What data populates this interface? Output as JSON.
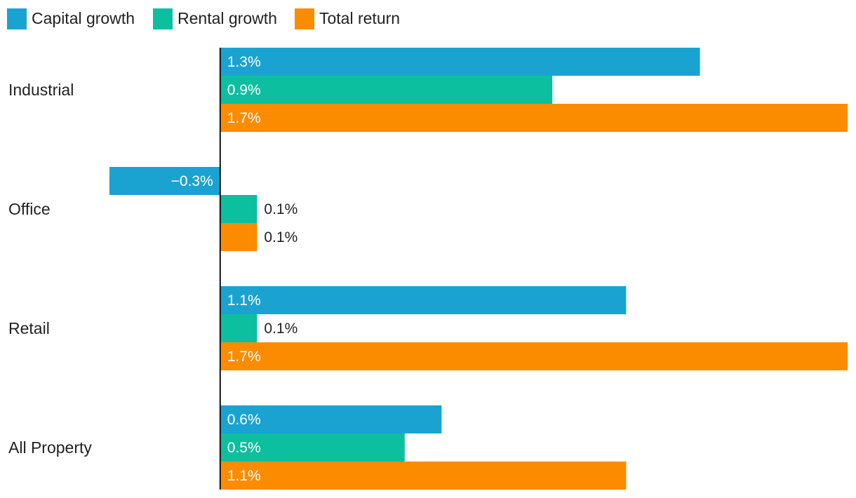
{
  "chart_data": {
    "type": "bar",
    "orientation": "horizontal",
    "categories": [
      "Industrial",
      "Office",
      "Retail",
      "All Property"
    ],
    "series": [
      {
        "name": "Capital growth",
        "color": "#1aa3d1",
        "values": [
          1.3,
          -0.3,
          1.1,
          0.6
        ],
        "labels": [
          "1.3%",
          "−0.3%",
          "1.1%",
          "0.6%"
        ]
      },
      {
        "name": "Rental growth",
        "color": "#0bbf9f",
        "values": [
          0.9,
          0.1,
          0.1,
          0.5
        ],
        "labels": [
          "0.9%",
          "0.1%",
          "0.1%",
          "0.5%"
        ]
      },
      {
        "name": "Total return",
        "color": "#fb8c00",
        "values": [
          1.7,
          0.1,
          1.7,
          1.1
        ],
        "labels": [
          "1.7%",
          "0.1%",
          "1.7%",
          "1.1%"
        ]
      }
    ],
    "xlim": [
      -0.3,
      1.7
    ],
    "legend": "top-left",
    "grid": false,
    "title": "",
    "xlabel": "",
    "ylabel": ""
  }
}
